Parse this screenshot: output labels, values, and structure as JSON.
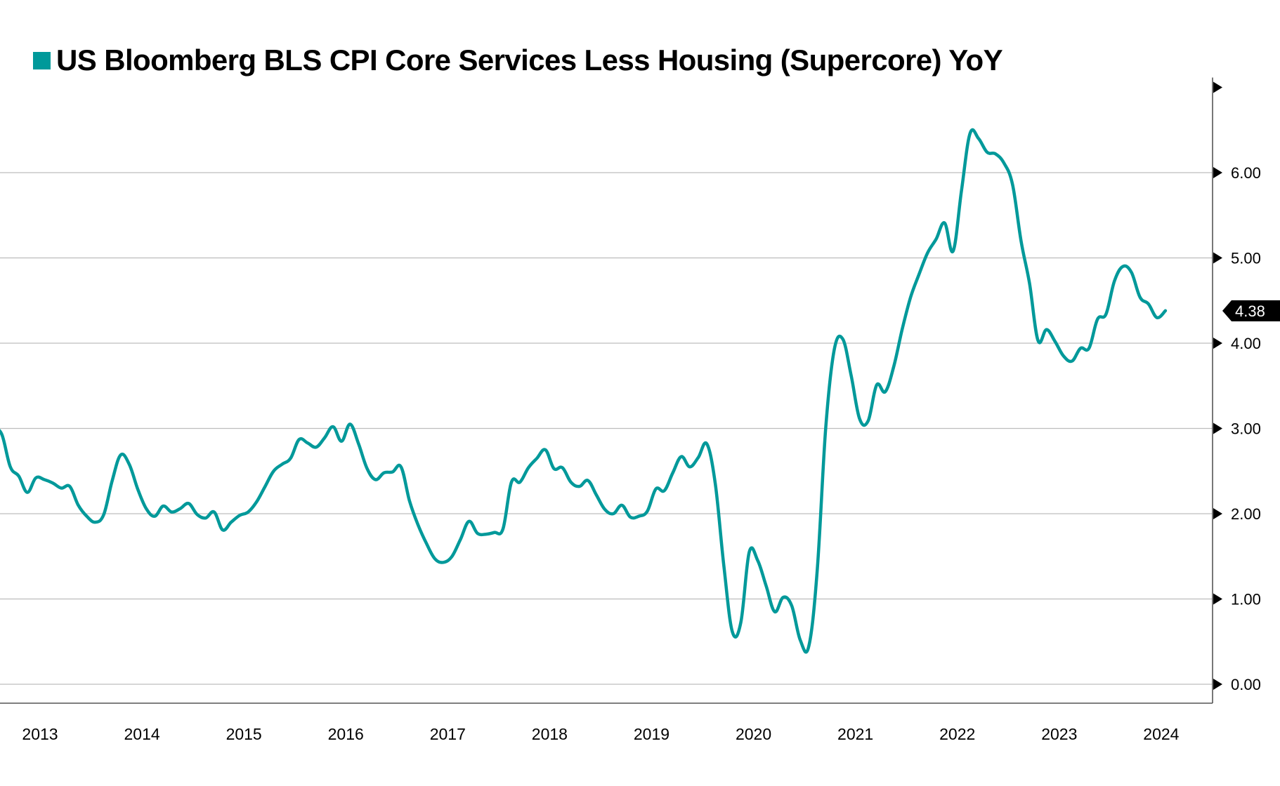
{
  "chart_data": {
    "type": "line",
    "title": "US Bloomberg BLS CPI Core Services Less Housing (Supercore) YoY",
    "xlabel": "",
    "ylabel": "",
    "ylim": [
      0,
      7
    ],
    "y_ticks": [
      0,
      1,
      2,
      3,
      4,
      5,
      6,
      7
    ],
    "y_tick_labels": [
      "0.00",
      "1.00",
      "2.00",
      "3.00",
      "4.00",
      "5.00",
      "6.00",
      ""
    ],
    "x_tick_labels": [
      "2013",
      "2014",
      "2015",
      "2016",
      "2017",
      "2018",
      "2019",
      "2020",
      "2021",
      "2022",
      "2023",
      "2024"
    ],
    "x_start": "2013-02",
    "x_frequency": "monthly",
    "grid": true,
    "axis_position": "right",
    "legend_position": "top-left",
    "series": [
      {
        "name": "US Bloomberg BLS CPI Core Services Less Housing (Supercore) YoY",
        "color": "#00999a",
        "last_value_label": "4.38",
        "values": [
          3.01,
          2.93,
          2.55,
          2.44,
          2.25,
          2.42,
          2.4,
          2.36,
          2.3,
          2.32,
          2.1,
          1.97,
          1.9,
          1.99,
          2.39,
          2.69,
          2.58,
          2.29,
          2.06,
          1.97,
          2.09,
          2.02,
          2.06,
          2.12,
          1.99,
          1.95,
          2.02,
          1.81,
          1.9,
          1.98,
          2.02,
          2.14,
          2.32,
          2.5,
          2.58,
          2.65,
          2.87,
          2.83,
          2.78,
          2.89,
          3.02,
          2.85,
          3.05,
          2.82,
          2.53,
          2.4,
          2.48,
          2.49,
          2.55,
          2.15,
          1.87,
          1.65,
          1.47,
          1.43,
          1.5,
          1.7,
          1.91,
          1.77,
          1.76,
          1.78,
          1.82,
          2.37,
          2.37,
          2.54,
          2.65,
          2.75,
          2.53,
          2.54,
          2.37,
          2.32,
          2.39,
          2.22,
          2.05,
          2.0,
          2.1,
          1.96,
          1.97,
          2.03,
          2.29,
          2.27,
          2.48,
          2.67,
          2.55,
          2.66,
          2.82,
          2.35,
          1.4,
          0.62,
          0.72,
          1.55,
          1.45,
          1.15,
          0.85,
          1.02,
          0.92,
          0.52,
          0.44,
          1.33,
          3.0,
          3.92,
          4.05,
          3.62,
          3.11,
          3.09,
          3.51,
          3.43,
          3.72,
          4.16,
          4.54,
          4.81,
          5.06,
          5.22,
          5.41,
          5.08,
          5.8,
          6.46,
          6.4,
          6.24,
          6.22,
          6.11,
          5.86,
          5.2,
          4.7,
          4.03,
          4.16,
          4.02,
          3.85,
          3.79,
          3.94,
          3.94,
          4.28,
          4.34,
          4.73,
          4.9,
          4.83,
          4.54,
          4.46,
          4.3,
          4.38
        ]
      }
    ]
  }
}
